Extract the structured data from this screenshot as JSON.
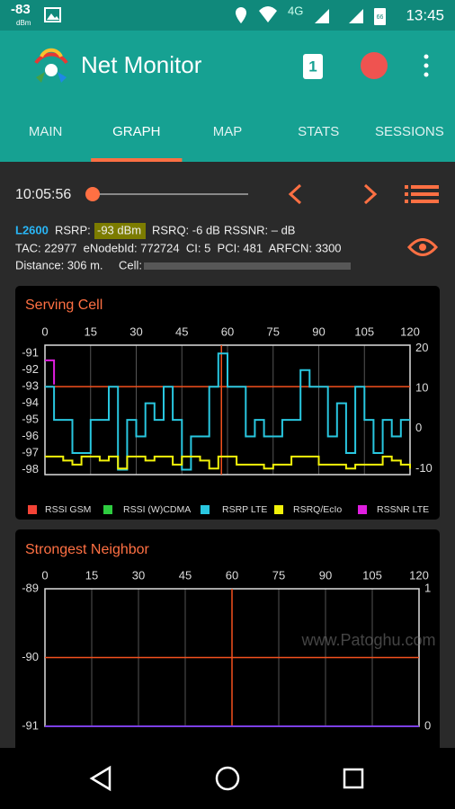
{
  "status_bar": {
    "signal": "-83",
    "signal_unit": "dBm",
    "network": "4G",
    "battery": "66",
    "time": "13:45"
  },
  "app_bar": {
    "title": "Net Monitor",
    "badge": "1"
  },
  "tabs": [
    "MAIN",
    "GRAPH",
    "MAP",
    "STATS",
    "SESSIONS"
  ],
  "active_tab": 1,
  "player": {
    "time": "10:05:56"
  },
  "cell_info": {
    "band": "L2600",
    "rsrp_label": "RSRP:",
    "rsrp": "-93 dBm",
    "rsrq": "RSRQ: -6 dB",
    "rssnr": "RSSNR: – dB",
    "line2": "TAC: 22977  eNodebId: 772724  CI: 5  PCI: 481  ARFCN: 3300",
    "distance": "Distance: 306 m.",
    "cell": "Cell:"
  },
  "watermark": "www.Patoghu.com",
  "chart_data": [
    {
      "type": "line",
      "title": "Serving Cell",
      "grid": true,
      "x": [
        0,
        3,
        6,
        9,
        12,
        15,
        18,
        21,
        24,
        27,
        30,
        33,
        36,
        39,
        42,
        45,
        48,
        51,
        54,
        57,
        60,
        63,
        66,
        69,
        72,
        75,
        78,
        81,
        84,
        87,
        90,
        93,
        96,
        99,
        102,
        105,
        108,
        111,
        114,
        117,
        120
      ],
      "xlim": [
        0,
        120
      ],
      "xticks": [
        0,
        15,
        30,
        45,
        60,
        75,
        90,
        105,
        120
      ],
      "ylim": [
        -98.3,
        -90.5
      ],
      "yticks": [
        -91,
        -92,
        -93,
        -94,
        -95,
        -96,
        -97,
        -98
      ],
      "y2lim": [
        -11.5,
        20.8
      ],
      "y2ticks": [
        20,
        10,
        0,
        -10
      ],
      "series": [
        {
          "name": "RSSI GSM",
          "color": "#f44336"
        },
        {
          "name": "RSSI (W)CDMA",
          "color": "#2ecc40"
        },
        {
          "name": "RSRP LTE",
          "color": "#29c7e0",
          "values": [
            -93,
            -95,
            -95,
            -97,
            -97,
            -95,
            -95,
            -93,
            -98,
            -95,
            -96,
            -94,
            -95,
            -93,
            -95,
            -98,
            -96,
            -96,
            -93,
            -91,
            -93,
            -93,
            -96,
            -95,
            -96,
            -96,
            -95,
            -95,
            -92,
            -93,
            -93,
            -96,
            -94,
            -97,
            -93,
            -95,
            -97,
            -95,
            -96,
            -95,
            -95
          ]
        },
        {
          "name": "RSRQ/EcIo",
          "color": "#f2f20a",
          "axis": "y2",
          "values": [
            -7,
            -7,
            -8,
            -9,
            -7,
            -7,
            -8,
            -7,
            -10,
            -7,
            -7,
            -8,
            -7,
            -7,
            -9,
            -7,
            -7,
            -8,
            -10,
            -7,
            -7,
            -9,
            -9,
            -9,
            -10,
            -9,
            -9,
            -7,
            -7,
            -7,
            -9,
            -9,
            -9,
            -10,
            -9,
            -9,
            -9,
            -7,
            -8,
            -9,
            -10
          ]
        },
        {
          "name": "RSSNR LTE",
          "color": "#e01ee0",
          "axis": "y2",
          "values": [
            17,
            11,
            null,
            null,
            null,
            null,
            null,
            null,
            null,
            null,
            null,
            null,
            null,
            null,
            null,
            null,
            null,
            null,
            null,
            null,
            null,
            null,
            null,
            null,
            null,
            null,
            null,
            null,
            null,
            null,
            null,
            null,
            null,
            null,
            null,
            null,
            null,
            null,
            null,
            null,
            null
          ]
        }
      ],
      "cursor_x": 58,
      "cursor_y": -93
    },
    {
      "type": "line",
      "title": "Strongest Neighbor",
      "grid": true,
      "x": [
        0,
        120
      ],
      "xlim": [
        0,
        120
      ],
      "xticks": [
        0,
        15,
        30,
        45,
        60,
        75,
        90,
        105,
        120
      ],
      "ylim": [
        -91,
        -89
      ],
      "yticks": [
        -89,
        -90,
        -91
      ],
      "y2lim": [
        0,
        1
      ],
      "y2ticks": [
        1,
        0
      ],
      "series": [
        {
          "color": "#7b3fe4",
          "axis": "y2",
          "values": [
            0,
            0
          ]
        }
      ],
      "cursor_x": 60,
      "cursor_y": -90
    }
  ]
}
